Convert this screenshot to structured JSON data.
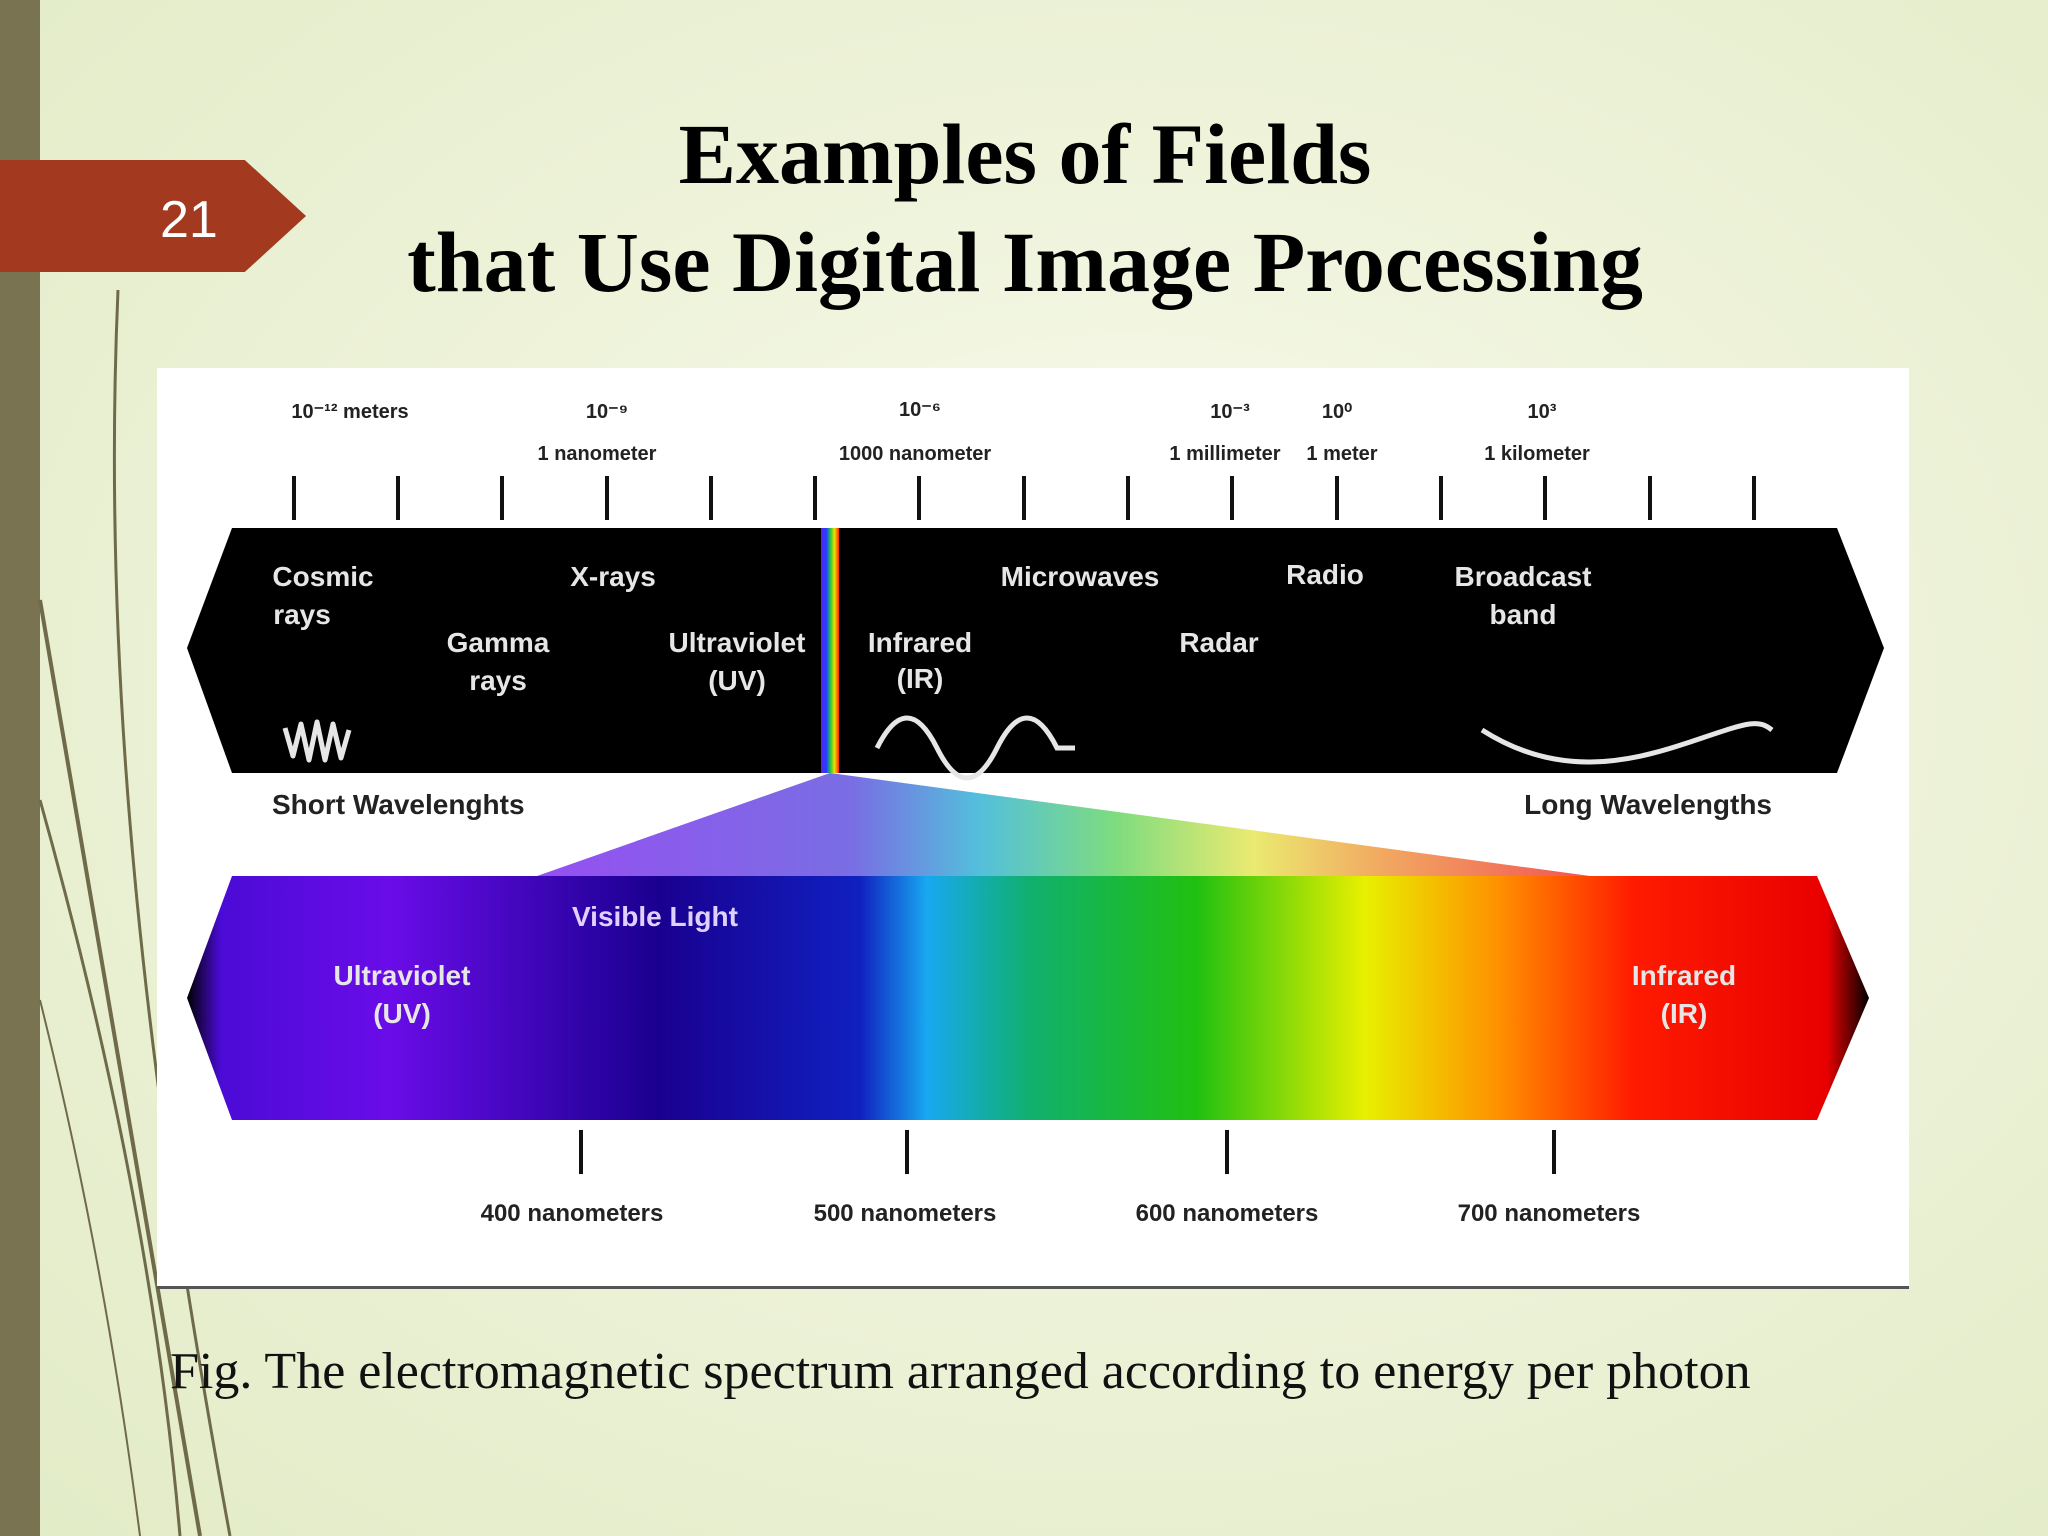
{
  "slide": {
    "number": "21",
    "title_line1": "Examples of Fields",
    "title_line2": "that Use Digital Image Processing",
    "caption": "Fig. The electromagnetic spectrum arranged according to energy per photon"
  },
  "scale": {
    "exponents": [
      "10⁻¹² meters",
      "10⁻⁹",
      "10⁻⁶",
      "10⁻³",
      "10⁰",
      "10³"
    ],
    "units": [
      "1 nanometer",
      "1000 nanometer",
      "1 millimeter",
      "1 meter",
      "1 kilometer"
    ]
  },
  "bands": {
    "cosmic": [
      "Cosmic",
      "rays"
    ],
    "gamma": [
      "Gamma",
      "rays"
    ],
    "xrays": "X-rays",
    "uv": [
      "Ultraviolet",
      "(UV)"
    ],
    "ir": [
      "Infrared",
      "(IR)"
    ],
    "microwaves": "Microwaves",
    "radar": "Radar",
    "radio": "Radio",
    "broadcast": [
      "Broadcast",
      "band"
    ]
  },
  "wavelength_labels": {
    "short": "Short Wavelenghts",
    "long": "Long Wavelengths"
  },
  "visible": {
    "title": "Visible Light",
    "uv": [
      "Ultraviolet",
      "(UV)"
    ],
    "ir": [
      "Infrared",
      "(IR)"
    ],
    "nm_labels": [
      "400 nanometers",
      "500 nanometers",
      "600 nanometers",
      "700 nanometers"
    ]
  }
}
